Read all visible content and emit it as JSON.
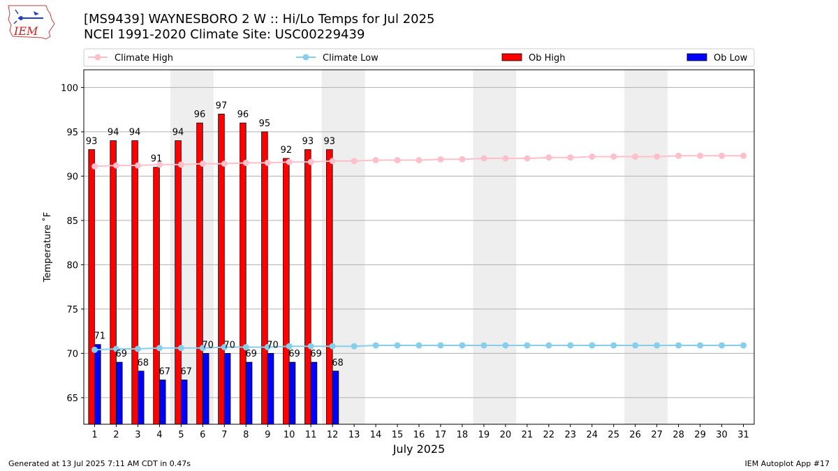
{
  "header": {
    "title_line1": "[MS9439] WAYNESBORO 2 W :: Hi/Lo Temps for Jul 2025",
    "title_line2": "NCEI 1991-2020 Climate Site: USC00229439",
    "logo_text": "IEM"
  },
  "footer": {
    "generated": "Generated at 13 Jul 2025 7:11 AM CDT in 0.47s",
    "app": "IEM Autoplot App #17"
  },
  "colors": {
    "climate_high": "#ffc0cb",
    "climate_low": "#87ceeb",
    "ob_high": "#ff0000",
    "ob_low": "#0000ff",
    "weekend_shade": "#eeeeee",
    "grid": "#b0b0b0"
  },
  "chart_data": {
    "type": "bar",
    "xlabel": "July 2025",
    "ylabel": "Temperature ˚F",
    "xlim": [
      0.5,
      31.5
    ],
    "ylim": [
      62,
      102
    ],
    "yticks": [
      65,
      70,
      75,
      80,
      85,
      90,
      95,
      100
    ],
    "grid": "horizontal",
    "legend": "top",
    "days": [
      1,
      2,
      3,
      4,
      5,
      6,
      7,
      8,
      9,
      10,
      11,
      12,
      13,
      14,
      15,
      16,
      17,
      18,
      19,
      20,
      21,
      22,
      23,
      24,
      25,
      26,
      27,
      28,
      29,
      30,
      31
    ],
    "weekend_spans": [
      [
        5,
        6
      ],
      [
        12,
        13
      ],
      [
        19,
        20
      ],
      [
        26,
        27
      ]
    ],
    "series": [
      {
        "name": "Climate High",
        "kind": "line",
        "values": [
          91.1,
          91.2,
          91.2,
          91.3,
          91.3,
          91.4,
          91.4,
          91.5,
          91.5,
          91.6,
          91.6,
          91.7,
          91.7,
          91.8,
          91.8,
          91.8,
          91.9,
          91.9,
          92.0,
          92.0,
          92.0,
          92.1,
          92.1,
          92.2,
          92.2,
          92.2,
          92.2,
          92.3,
          92.3,
          92.3,
          92.3
        ]
      },
      {
        "name": "Climate Low",
        "kind": "line",
        "values": [
          70.4,
          70.5,
          70.5,
          70.6,
          70.6,
          70.6,
          70.7,
          70.7,
          70.7,
          70.8,
          70.8,
          70.8,
          70.8,
          70.9,
          70.9,
          70.9,
          70.9,
          70.9,
          70.9,
          70.9,
          70.9,
          70.9,
          70.9,
          70.9,
          70.9,
          70.9,
          70.9,
          70.9,
          70.9,
          70.9,
          70.9
        ]
      },
      {
        "name": "Ob High",
        "kind": "bar",
        "values": [
          93,
          94,
          94,
          91,
          94,
          96,
          97,
          96,
          95,
          92,
          93,
          93
        ]
      },
      {
        "name": "Ob Low",
        "kind": "bar",
        "values": [
          71,
          69,
          68,
          67,
          67,
          70,
          70,
          69,
          70,
          69,
          69,
          68
        ]
      }
    ]
  }
}
